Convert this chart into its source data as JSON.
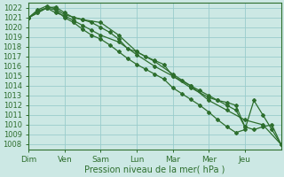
{
  "xlabel": "Pression niveau de la mer( hPa )",
  "bg_color": "#cce8e4",
  "grid_color": "#99cccc",
  "line_color": "#2d6e2d",
  "ylim": [
    1007.5,
    1022.5
  ],
  "yticks": [
    1008,
    1009,
    1010,
    1011,
    1012,
    1013,
    1014,
    1015,
    1016,
    1017,
    1018,
    1019,
    1020,
    1021,
    1022
  ],
  "day_labels": [
    "Dim",
    "Ven",
    "Sam",
    "Lun",
    "Mar",
    "Mer",
    "Jeu"
  ],
  "day_positions": [
    0,
    1,
    2,
    3,
    4,
    5,
    6
  ],
  "xlim": [
    0,
    7
  ],
  "lines": [
    {
      "x": [
        0.0,
        0.25,
        0.5,
        0.75,
        1.0,
        1.25,
        1.5,
        1.75,
        2.0,
        2.25,
        2.5,
        2.75,
        3.0,
        3.25,
        3.5,
        3.75,
        4.0,
        4.25,
        4.5,
        4.75,
        5.0,
        5.25,
        5.5,
        5.75,
        6.0,
        6.25,
        6.5,
        6.75,
        7.0
      ],
      "y": [
        1021.0,
        1021.7,
        1022.0,
        1021.8,
        1021.0,
        1020.5,
        1019.8,
        1019.2,
        1018.8,
        1018.2,
        1017.5,
        1016.8,
        1016.2,
        1015.7,
        1015.2,
        1014.7,
        1013.8,
        1013.2,
        1012.6,
        1012.0,
        1011.3,
        1010.5,
        1009.8,
        1009.2,
        1009.5,
        1012.5,
        1011.0,
        1009.5,
        1008.0
      ]
    },
    {
      "x": [
        0.0,
        0.25,
        0.5,
        0.75,
        1.0,
        1.25,
        1.5,
        1.75,
        2.0,
        2.5,
        3.0,
        3.5,
        4.0,
        4.5,
        5.0,
        5.25,
        5.5,
        5.75,
        6.0,
        6.25,
        6.5,
        6.75,
        7.0
      ],
      "y": [
        1021.0,
        1021.5,
        1022.0,
        1021.5,
        1021.2,
        1020.7,
        1020.2,
        1019.7,
        1019.2,
        1018.5,
        1017.2,
        1016.0,
        1015.0,
        1013.8,
        1012.8,
        1012.5,
        1012.3,
        1012.0,
        1009.8,
        1009.5,
        1009.8,
        1010.0,
        1008.0
      ]
    },
    {
      "x": [
        0.0,
        0.25,
        0.5,
        0.75,
        1.0,
        1.5,
        2.0,
        2.5,
        3.0,
        3.25,
        3.5,
        3.75,
        4.0,
        4.25,
        4.5,
        4.75,
        5.0,
        5.25,
        5.5,
        5.75,
        6.0
      ],
      "y": [
        1021.0,
        1021.8,
        1022.2,
        1021.9,
        1021.3,
        1020.8,
        1020.5,
        1019.2,
        1017.5,
        1017.0,
        1016.6,
        1016.2,
        1015.0,
        1014.5,
        1014.0,
        1013.5,
        1013.0,
        1012.5,
        1012.0,
        1011.5,
        1009.8
      ]
    },
    {
      "x": [
        0.0,
        0.25,
        0.5,
        0.75,
        1.0,
        1.25,
        1.5,
        1.75,
        2.0,
        2.25,
        2.5,
        2.75,
        3.0,
        3.5,
        4.0,
        4.5,
        5.0,
        5.5,
        6.0,
        6.5,
        7.0
      ],
      "y": [
        1021.0,
        1021.5,
        1022.0,
        1022.1,
        1021.5,
        1021.0,
        1020.8,
        1020.5,
        1020.0,
        1019.5,
        1018.8,
        1017.8,
        1017.5,
        1016.5,
        1015.2,
        1014.0,
        1012.5,
        1011.5,
        1010.5,
        1010.0,
        1008.0
      ]
    }
  ]
}
